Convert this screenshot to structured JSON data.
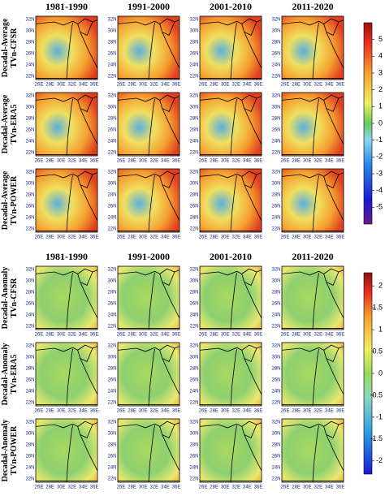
{
  "blocks": [
    {
      "columns": [
        "1981-1990",
        "1991-2000",
        "2001-2010",
        "2011-2020"
      ],
      "rows": [
        {
          "kind": "Decadal-Average",
          "dataset": "TVn-CFSR"
        },
        {
          "kind": "Decadal-Average",
          "dataset": "TVn-ERA5"
        },
        {
          "kind": "Decadal-Average",
          "dataset": "TVn-POWER"
        }
      ],
      "colorbar": {
        "lim": [
          -6,
          6
        ],
        "ticks": [
          5,
          4,
          3,
          2,
          1,
          0,
          -1,
          -2,
          -3,
          -4,
          -5
        ]
      }
    },
    {
      "columns": [
        "1981-1990",
        "1991-2000",
        "2001-2010",
        "2011-2020"
      ],
      "rows": [
        {
          "kind": "Decadal-Anomaly",
          "dataset": "TVn-CFSR"
        },
        {
          "kind": "Decadal-Anomaly",
          "dataset": "TVn-ERA5"
        },
        {
          "kind": "Decadal-Anomaly",
          "dataset": "TVn-POWER"
        }
      ],
      "colorbar": {
        "lim": [
          -2.3,
          2.3
        ],
        "ticks": [
          2,
          1.5,
          1,
          0.5,
          0,
          -0.5,
          -1,
          -1.5,
          -2
        ]
      }
    }
  ],
  "lat_labels": [
    "32N",
    "30N",
    "28N",
    "26N",
    "24N",
    "22N"
  ],
  "lon_labels": [
    "26E",
    "28E",
    "30E",
    "32E",
    "34E",
    "36E"
  ]
}
